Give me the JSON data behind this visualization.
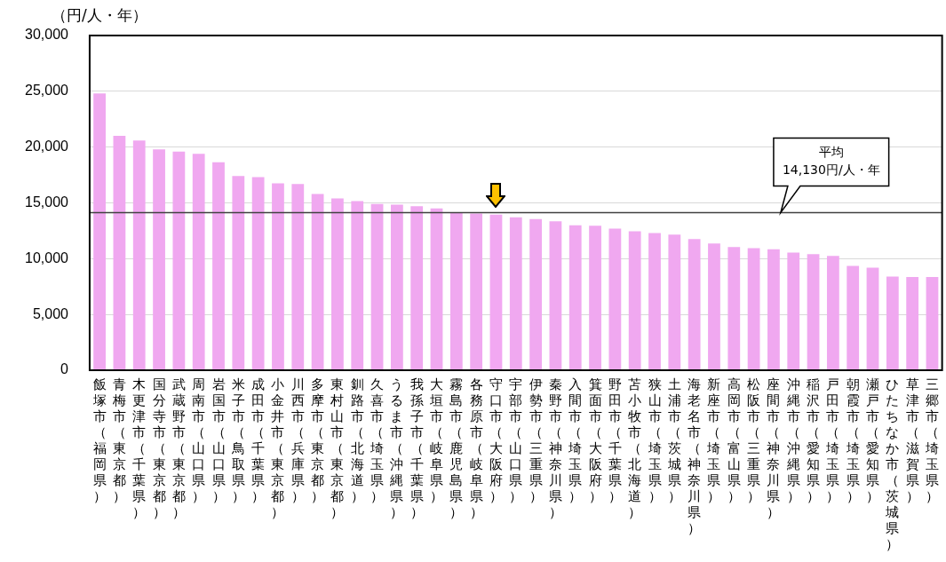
{
  "chart_data": {
    "type": "bar",
    "ylabel": "（円/人・年）",
    "categories": [
      "飯塚市（福岡県）",
      "青梅市（東京都）",
      "木更津市（千葉県）",
      "国分寺市（東京都）",
      "武蔵野市（東京都）",
      "周南市（山口県）",
      "岩国市（山口県）",
      "米子市（鳥取県）",
      "成田市（千葉県）",
      "小金井市（東京都）",
      "川西市（兵庫県）",
      "多摩市（東京都）",
      "東村山市（東京都）",
      "釧路市（北海道）",
      "久喜市（埼玉県）",
      "うるま市（沖縄県）",
      "我孫子市（千葉県）",
      "大垣市（岐阜県）",
      "霧島市（鹿児島県）",
      "各務原市（岐阜県）",
      "守口市（大阪府）",
      "宇部市（山口県）",
      "伊勢市（三重県）",
      "秦野市（神奈川県）",
      "入間市（埼玉県）",
      "箕面市（大阪府）",
      "野田市（千葉県）",
      "苫小牧市（北海道）",
      "狭山市（埼玉県）",
      "土浦市（茨城県）",
      "海老名市（神奈川県）",
      "新座市（埼玉県）",
      "高岡市（富山県）",
      "松阪市（三重県）",
      "座間市（神奈川県）",
      "沖縄市（沖縄県）",
      "稲沢市（愛知県）",
      "戸田市（埼玉県）",
      "朝霞市（埼玉県）",
      "瀬戸市（愛知県）",
      "ひたちなか市（茨城県）",
      "草津市（滋賀県）",
      "三郷市（埼玉県）"
    ],
    "values": [
      24800,
      21000,
      20600,
      19800,
      19600,
      19400,
      18650,
      17400,
      17300,
      16750,
      16700,
      15800,
      15400,
      15150,
      14900,
      14850,
      14700,
      14500,
      14100,
      14050,
      13950,
      13700,
      13550,
      13350,
      13000,
      12950,
      12700,
      12450,
      12300,
      12150,
      11750,
      11350,
      11050,
      10950,
      10850,
      10550,
      10400,
      10250,
      9350,
      9200,
      8400,
      8350,
      8350
    ],
    "colors": [
      "#f0a8f0",
      "#f0a8f0",
      "#f0a8f0",
      "#f0a8f0",
      "#f0a8f0",
      "#f0a8f0",
      "#f0a8f0",
      "#f0a8f0",
      "#f0a8f0",
      "#f0a8f0",
      "#f0a8f0",
      "#f0a8f0",
      "#f0a8f0",
      "#f0a8f0",
      "#f0a8f0",
      "#f0a8f0",
      "#f0a8f0",
      "#f0a8f0",
      "#f0a8f0",
      "#f0a8f0",
      "#f2a8f2",
      "#f0a8f0",
      "#f0a8f0",
      "#f0a8f0",
      "#f0a8f0",
      "#f0a8f0",
      "#f0a8f0",
      "#f0a8f0",
      "#f0a8f0",
      "#f0a8f0",
      "#f0a8f0",
      "#f0a8f0",
      "#f0a8f0",
      "#f0a8f0",
      "#f0a8f0",
      "#f0a8f0",
      "#f0a8f0",
      "#f0a8f0",
      "#f0a8f0",
      "#f0a8f0",
      "#f0a8f0",
      "#f0a8f0",
      "#f0a8f0"
    ],
    "ylim": [
      0,
      30000
    ],
    "yticks": [
      0,
      {
        "value": 5000,
        "label": "5,000"
      },
      {
        "value": 10000,
        "label": "10,000"
      },
      {
        "value": 15000,
        "label": "15,000"
      },
      {
        "value": 20000,
        "label": "20,000"
      },
      {
        "value": 25000,
        "label": "25,000"
      },
      {
        "value": 30000,
        "label": "30,000"
      }
    ],
    "ref_lines": [
      {
        "axis": "y",
        "value": 14130,
        "label": "平均\n14,130円/人・年",
        "color": "#404040"
      }
    ],
    "grid": "y",
    "legend": false
  }
}
